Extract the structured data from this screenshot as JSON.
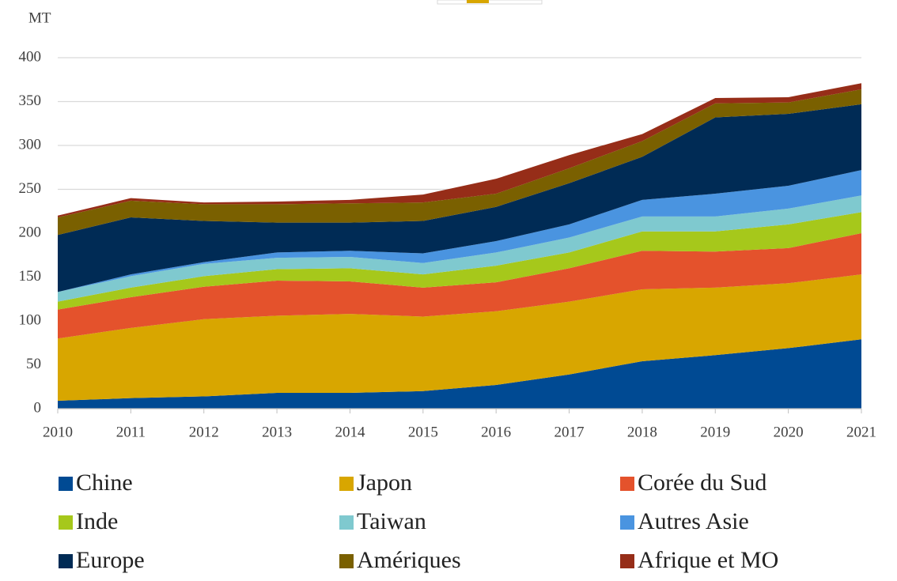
{
  "chart_data": {
    "type": "stacked_area",
    "y_label": "MT",
    "categories": [
      "2010",
      "2011",
      "2012",
      "2013",
      "2014",
      "2015",
      "2016",
      "2017",
      "2018",
      "2019",
      "2020",
      "2021"
    ],
    "series": [
      {
        "name": "Chine",
        "color": "#004a93",
        "values": [
          9,
          12,
          14,
          18,
          18,
          20,
          27,
          39,
          54,
          61,
          69,
          79
        ]
      },
      {
        "name": "Japon",
        "color": "#d8a600",
        "values": [
          71,
          80,
          88,
          88,
          90,
          85,
          84,
          83,
          82,
          77,
          74,
          74
        ]
      },
      {
        "name": "Corée du Sud",
        "color": "#e4522c",
        "values": [
          33,
          35,
          37,
          40,
          37,
          33,
          33,
          38,
          44,
          41,
          40,
          47
        ]
      },
      {
        "name": "Inde",
        "color": "#a6c81b",
        "values": [
          9,
          11,
          12,
          13,
          15,
          15,
          19,
          18,
          22,
          23,
          27,
          24
        ]
      },
      {
        "name": "Taiwan",
        "color": "#7fc9cf",
        "values": [
          11,
          13,
          14,
          13,
          13,
          13,
          15,
          17,
          17,
          17,
          18,
          19
        ]
      },
      {
        "name": "Autres Asie",
        "color": "#4a94e0",
        "values": [
          0,
          2,
          2,
          6,
          7,
          11,
          13,
          15,
          19,
          26,
          26,
          29
        ]
      },
      {
        "name": "Europe",
        "color": "#002b55",
        "values": [
          65,
          65,
          47,
          34,
          32,
          37,
          39,
          47,
          49,
          87,
          82,
          75
        ]
      },
      {
        "name": "Amériques",
        "color": "#7a6000",
        "values": [
          20,
          19,
          19,
          21,
          22,
          21,
          15,
          17,
          18,
          16,
          13,
          17
        ]
      },
      {
        "name": "Afrique et MO",
        "color": "#962d18",
        "values": [
          2,
          3,
          2,
          3,
          4,
          9,
          17,
          15,
          8,
          6,
          6,
          7
        ]
      }
    ],
    "ylim": [
      0,
      400
    ],
    "yticks": [
      0,
      50,
      100,
      150,
      200,
      250,
      300,
      350,
      400
    ],
    "grid": true,
    "legend": "bottom"
  }
}
